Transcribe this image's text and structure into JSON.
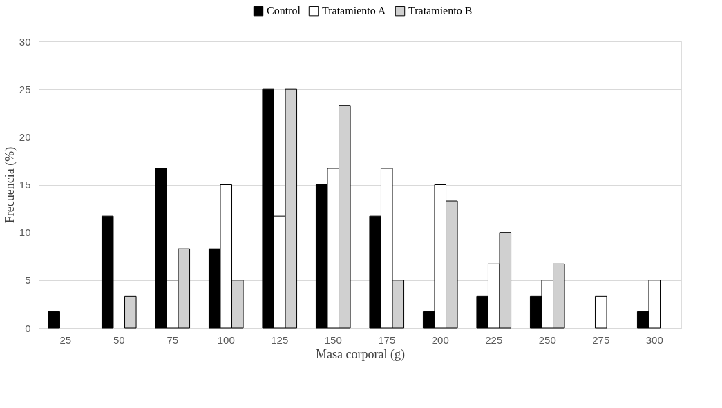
{
  "chart_data": {
    "type": "bar",
    "xlabel": "Masa corporal (g)",
    "ylabel": "Frecuencia (%)",
    "categories": [
      "25",
      "50",
      "75",
      "100",
      "125",
      "150",
      "175",
      "200",
      "225",
      "250",
      "275",
      "300"
    ],
    "series": [
      {
        "name": "Control",
        "color": "#000000",
        "values": [
          1.7,
          11.7,
          16.7,
          8.3,
          25,
          15,
          11.7,
          1.7,
          3.3,
          3.3,
          null,
          1.7
        ]
      },
      {
        "name": "Tratamiento A",
        "color": "#ffffff",
        "values": [
          null,
          null,
          5,
          15,
          11.7,
          16.7,
          16.7,
          15,
          6.7,
          5,
          3.3,
          5
        ]
      },
      {
        "name": "Tratamiento B",
        "color": "#d0d0d0",
        "values": [
          null,
          3.3,
          8.3,
          5,
          25,
          23.3,
          5,
          13.3,
          10,
          6.7,
          null,
          null
        ]
      }
    ],
    "ylim": [
      0,
      30
    ],
    "yticks": [
      0,
      5,
      10,
      15,
      20,
      25,
      30
    ],
    "grid": "y",
    "legend": "top"
  }
}
